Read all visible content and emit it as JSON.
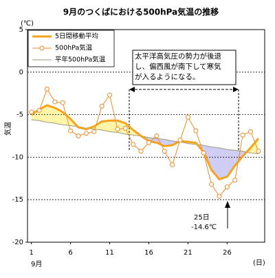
{
  "chart_data": {
    "type": "line",
    "title": "9月のつくばにおける500hPa気温の推移",
    "y_unit": "(℃)",
    "y_label": "気温",
    "x_unit": "(日)",
    "x_label": "9月",
    "x": [
      1,
      2,
      3,
      4,
      5,
      6,
      7,
      8,
      9,
      10,
      11,
      12,
      13,
      14,
      15,
      16,
      17,
      18,
      19,
      20,
      21,
      22,
      23,
      24,
      25,
      26,
      27,
      28,
      29,
      30
    ],
    "xlim": [
      0.5,
      30.8
    ],
    "xticks": [
      1,
      6,
      11,
      16,
      21,
      26
    ],
    "ylim": [
      -20,
      5
    ],
    "yticks": [
      5,
      0,
      -5,
      -10,
      -15,
      -20
    ],
    "grid": true,
    "series": [
      {
        "name": "5日間移動平均",
        "color": "#f5a21e",
        "values": [
          -5.0,
          -4.4,
          -3.9,
          -4.2,
          -4.7,
          -5.5,
          -6.5,
          -6.7,
          -6.4,
          -5.8,
          -5.7,
          -5.7,
          -6.0,
          -6.8,
          -7.5,
          -8.1,
          -8.3,
          -8.7,
          -8.6,
          -8.1,
          -8.2,
          -8.3,
          -9.4,
          -11.5,
          -12.6,
          -12.3,
          -11.0,
          -9.9,
          -8.9,
          -7.8
        ]
      },
      {
        "name": "500hPa気温",
        "color": "#f08a24",
        "values": [
          -4.7,
          -4.5,
          -2.0,
          -3.5,
          -3.6,
          -6.9,
          -7.5,
          -7.2,
          -7.0,
          -4.0,
          -2.7,
          -6.7,
          -6.6,
          -8.5,
          -9.3,
          -8.3,
          -7.5,
          -9.3,
          -10.9,
          -8.0,
          -5.3,
          -6.9,
          -9.5,
          -13.2,
          -14.6,
          -13.5,
          -12.7,
          -7.4,
          -7.0,
          -9.3
        ]
      },
      {
        "name": "平年500hPa気温",
        "color": "#9a9a7a",
        "values": [
          -5.6,
          -5.7,
          -5.9,
          -6.0,
          -6.2,
          -6.3,
          -6.4,
          -6.6,
          -6.7,
          -6.8,
          -7.0,
          -7.1,
          -7.3,
          -7.4,
          -7.5,
          -7.7,
          -7.8,
          -7.9,
          -8.1,
          -8.2,
          -8.4,
          -8.5,
          -8.6,
          -8.8,
          -8.9,
          -9.1,
          -9.2,
          -9.3,
          -9.5,
          -9.6
        ]
      }
    ],
    "above_color": "#fff5a8",
    "below_color": "#cfcdf3",
    "annotations": {
      "box": [
        "太平洋高気圧の勢力が後退",
        "し、偏西風が南下して寒気",
        "が入るようになる。"
      ],
      "point": [
        "25日",
        "-14.6℃"
      ]
    }
  }
}
